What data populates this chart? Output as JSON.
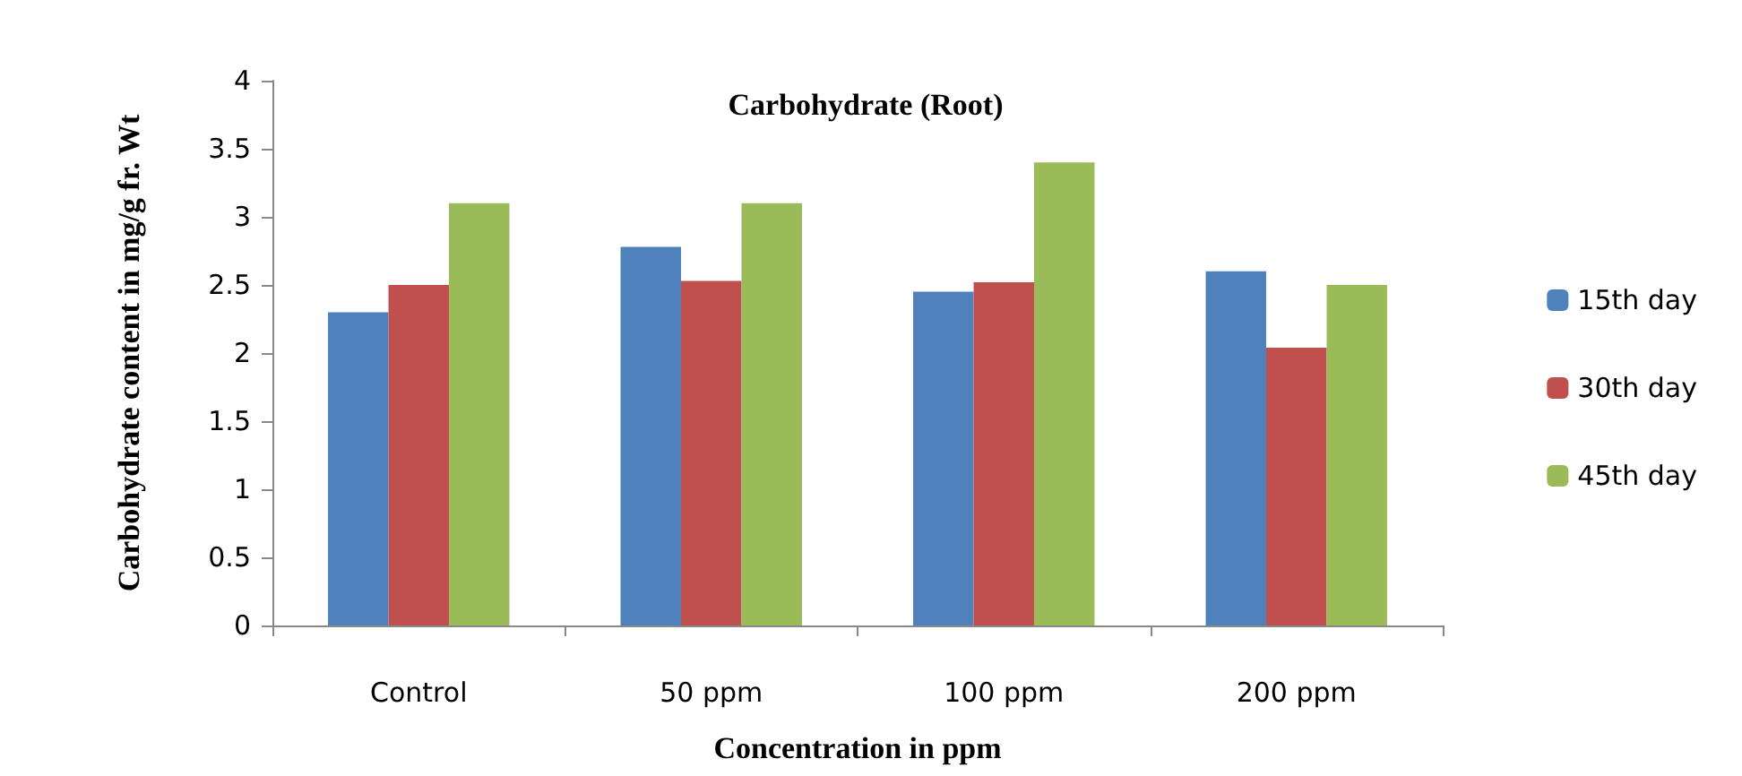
{
  "chart_data": {
    "type": "bar",
    "title": "Carbohydrate (Root)",
    "xlabel": "Concentration in ppm",
    "ylabel": "Carbohydrate content in mg/g fr. Wt",
    "categories": [
      "Control",
      "50 ppm",
      "100 ppm",
      "200 ppm"
    ],
    "series": [
      {
        "name": "15th day",
        "color": "#4f81bd",
        "values": [
          2.3,
          2.78,
          2.45,
          2.6
        ]
      },
      {
        "name": "30th day",
        "color": "#c0504d",
        "values": [
          2.5,
          2.53,
          2.52,
          2.04
        ]
      },
      {
        "name": "45th day",
        "color": "#9bbb59",
        "values": [
          3.1,
          3.1,
          3.4,
          2.5
        ]
      }
    ],
    "ylim": [
      0,
      4
    ],
    "yticks": [
      0,
      0.5,
      1,
      1.5,
      2,
      2.5,
      3,
      3.5,
      4
    ],
    "grid": false,
    "legend": "right"
  }
}
